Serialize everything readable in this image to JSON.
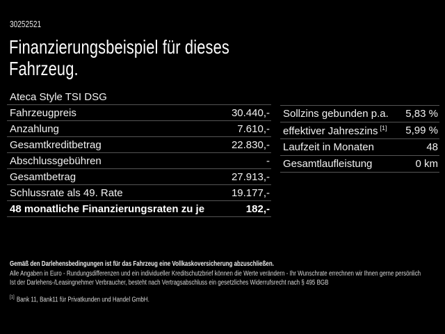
{
  "header": {
    "vehicle_id": "30252521",
    "title_line1": "Finanzierungsbeispiel für dieses",
    "title_line2": "Fahrzeug.",
    "model": "Ateca Style TSI DSG"
  },
  "financing_table": {
    "rows": [
      {
        "label": "Fahrzeugpreis",
        "value": "30.440,-"
      },
      {
        "label": "Anzahlung",
        "value": "7.610,-"
      },
      {
        "label": "Gesamtkreditbetrag",
        "value": "22.830,-"
      },
      {
        "label": "Abschlussgebühren",
        "value": "-"
      },
      {
        "label": "Gesamtbetrag",
        "value": "27.913,-"
      },
      {
        "label": "Schlussrate als 49. Rate",
        "value": "19.177,-"
      },
      {
        "label": "48 monatliche Finanzierungsraten zu je",
        "value": "182,-"
      }
    ]
  },
  "conditions_table": {
    "rows": [
      {
        "label": "Sollzins gebunden p.a.",
        "value": "5,83 %"
      },
      {
        "label": "effektiver Jahreszins",
        "footnote_marker": "[1]",
        "value": "5,99 %"
      },
      {
        "label": "Laufzeit in Monaten",
        "value": "48"
      },
      {
        "label": "Gesamtlaufleistung",
        "value": "0 km"
      }
    ]
  },
  "footer": {
    "insurance_note": "Gemäß den Darlehensbedingungen ist für das Fahrzeug eine Vollkaskoversicherung abzuschließen.",
    "disclaimer": "Alle Angaben in Euro - Rundungsdifferenzen und ein individueller Kreditschutzbrief können die Werte verändern - Ihr Wunschrate errechnen wir Ihnen gerne persönlich",
    "withdrawal_note": "Ist der Darlehens-/Leasingnehmer Verbraucher, besteht nach Vertragsabschluss ein gesetzliches Widerrufsrecht nach § 495 BGB",
    "bank_footnote_marker": "[1]",
    "bank_footnote": "Bank 11, Bank11 für Privatkunden und Handel GmbH."
  },
  "colors": {
    "background": "#000000",
    "text": "#f5f5f5",
    "divider": "#555555",
    "footer_text": "#d9d9d9"
  }
}
